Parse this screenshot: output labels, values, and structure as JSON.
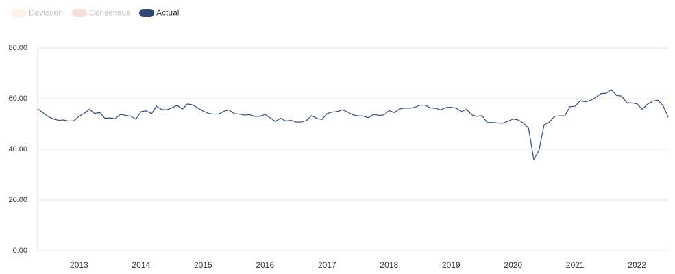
{
  "chart_data": {
    "type": "line",
    "legend_inactive": [
      {
        "name": "Deviation",
        "color": "#fdf0ea"
      },
      {
        "name": "Consensus",
        "color": "#f7dcd8"
      }
    ],
    "categories": [
      null,
      null,
      null,
      null,
      null,
      null,
      null,
      null,
      "2013",
      null,
      null,
      null,
      null,
      null,
      null,
      null,
      null,
      null,
      null,
      null,
      "2014",
      null,
      null,
      null,
      null,
      null,
      null,
      null,
      null,
      null,
      null,
      null,
      "2015",
      null,
      null,
      null,
      null,
      null,
      null,
      null,
      null,
      null,
      null,
      null,
      "2016",
      null,
      null,
      null,
      null,
      null,
      null,
      null,
      null,
      null,
      null,
      null,
      "2017",
      null,
      null,
      null,
      null,
      null,
      null,
      null,
      null,
      null,
      null,
      null,
      "2018",
      null,
      null,
      null,
      null,
      null,
      null,
      null,
      null,
      null,
      null,
      null,
      "2019",
      null,
      null,
      null,
      null,
      null,
      null,
      null,
      null,
      null,
      null,
      null,
      "2020",
      null,
      null,
      null,
      null,
      null,
      null,
      null,
      null,
      null,
      null,
      null,
      "2021",
      null,
      null,
      null,
      null,
      null,
      null,
      null,
      null,
      null,
      null,
      null,
      "2022",
      null,
      null,
      null,
      null,
      null,
      null
    ],
    "series": [
      {
        "name": "Actual",
        "color": "#34496e",
        "values": [
          56,
          54.5,
          53,
          52,
          51.5,
          51.6,
          51.2,
          51.3,
          53,
          54.2,
          55.8,
          54.2,
          54.5,
          52.3,
          52.4,
          52.1,
          53.8,
          53.4,
          53.1,
          51.9,
          54.9,
          55.2,
          54,
          57,
          55.7,
          55.6,
          56.4,
          57.3,
          55.9,
          57.9,
          57.5,
          56.3,
          55.1,
          54.2,
          53.9,
          53.9,
          55,
          55.6,
          54.1,
          53.9,
          53.5,
          53.7,
          53,
          53,
          53.8,
          52.4,
          51,
          52.3,
          51.2,
          51.5,
          50.8,
          50.8,
          51.4,
          53.3,
          52.2,
          51.8,
          54.1,
          54.7,
          54.9,
          55.6,
          54.7,
          53.6,
          53.2,
          53.1,
          52.5,
          53.8,
          53.4,
          53.6,
          55.3,
          54.5,
          55.9,
          56.3,
          56.2,
          56.6,
          57.4,
          57.4,
          56.3,
          56.2,
          55.6,
          56.5,
          56.6,
          56.2,
          54.9,
          55.8,
          53.6,
          53,
          53.3,
          50.6,
          50.6,
          50.4,
          50.3,
          51.1,
          52,
          51.6,
          50.4,
          48.3,
          36,
          39.5,
          49.7,
          50.7,
          53,
          53.2,
          53.2,
          56.8,
          57,
          59.2,
          58.7,
          59.3,
          60.5,
          62,
          62.1,
          63.5,
          61.3,
          61,
          58.4,
          58.3,
          57.9,
          55.8,
          57.8,
          59,
          59.4,
          57.3,
          52.7
        ]
      }
    ],
    "ylim": [
      0,
      80
    ],
    "yticks": [
      {
        "value": 0,
        "label": "0.00"
      },
      {
        "value": 20,
        "label": "20.00"
      },
      {
        "value": 40,
        "label": "40.00"
      },
      {
        "value": 60,
        "label": "60.00"
      },
      {
        "value": 80,
        "label": "80.00"
      }
    ],
    "grid": true
  }
}
